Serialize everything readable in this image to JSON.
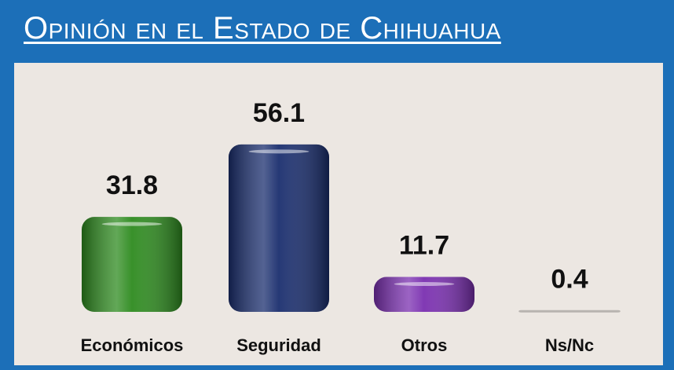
{
  "chart_data": {
    "type": "bar",
    "title": "Opinión en el Estado de Chihuahua",
    "categories": [
      "Económicos",
      "Seguridad",
      "Otros",
      "Ns/Nc"
    ],
    "values": [
      31.8,
      56.1,
      11.7,
      0.4
    ],
    "colors": [
      "#2e8b1f",
      "#1a2e6e",
      "#7a2fb0",
      "#d8d4d0"
    ]
  }
}
